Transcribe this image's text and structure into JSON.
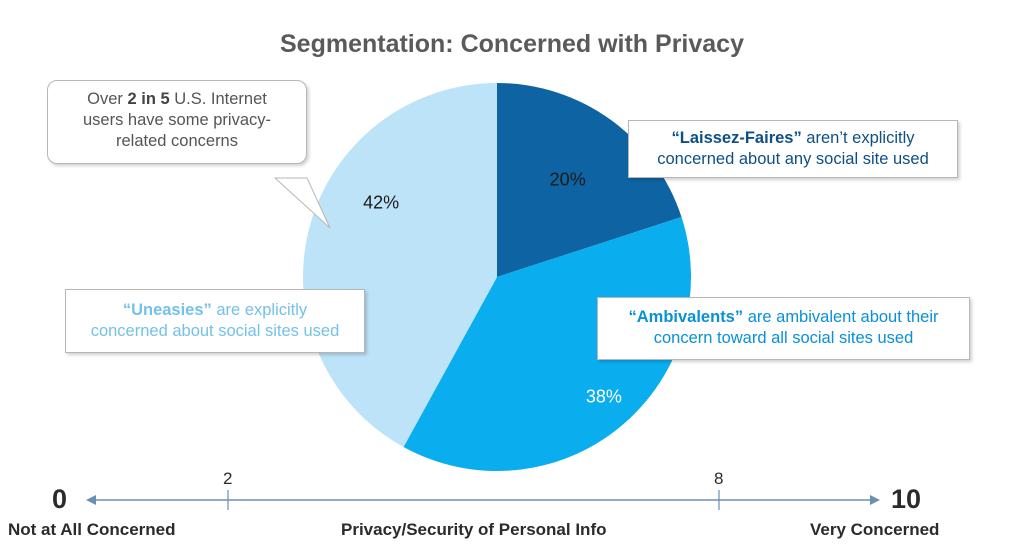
{
  "title": "Segmentation: Concerned with Privacy",
  "chart_data": {
    "type": "pie",
    "slices": [
      {
        "label": "Laissez-Faires",
        "value": 20,
        "display": "20%",
        "color": "#0e63a3"
      },
      {
        "label": "Ambivalents",
        "value": 38,
        "display": "38%",
        "color": "#0aaeef"
      },
      {
        "label": "Uneasies",
        "value": 42,
        "display": "42%",
        "color": "#bde3f8"
      }
    ]
  },
  "callouts": {
    "laissez": {
      "name": "“Laissez-Faires”",
      "rest1": " aren’t explicitly",
      "line2": "concerned about any social site used",
      "color": "#0e4f86"
    },
    "ambivalent": {
      "name": "“Ambivalents”",
      "rest1": " are ambivalent about their",
      "line2": "concern toward all social sites used",
      "color": "#0a90d6"
    },
    "uneasy": {
      "name": "“Uneasies”",
      "rest1": " are explicitly",
      "line2": "concerned about social sites used",
      "color": "#74c1ea"
    },
    "summary": {
      "pre": "Over ",
      "bold": "2 in 5",
      "post": " U.S. Internet",
      "line2": "users have some privacy-",
      "line3": "related concerns",
      "color": "#555555"
    }
  },
  "scale": {
    "min": "0",
    "max": "10",
    "tick_a": "2",
    "tick_b": "8",
    "min_label": "Not at All Concerned",
    "center_label": "Privacy/Security of Personal Info",
    "max_label": "Very Concerned",
    "axis_color": "#6b8fb3"
  }
}
